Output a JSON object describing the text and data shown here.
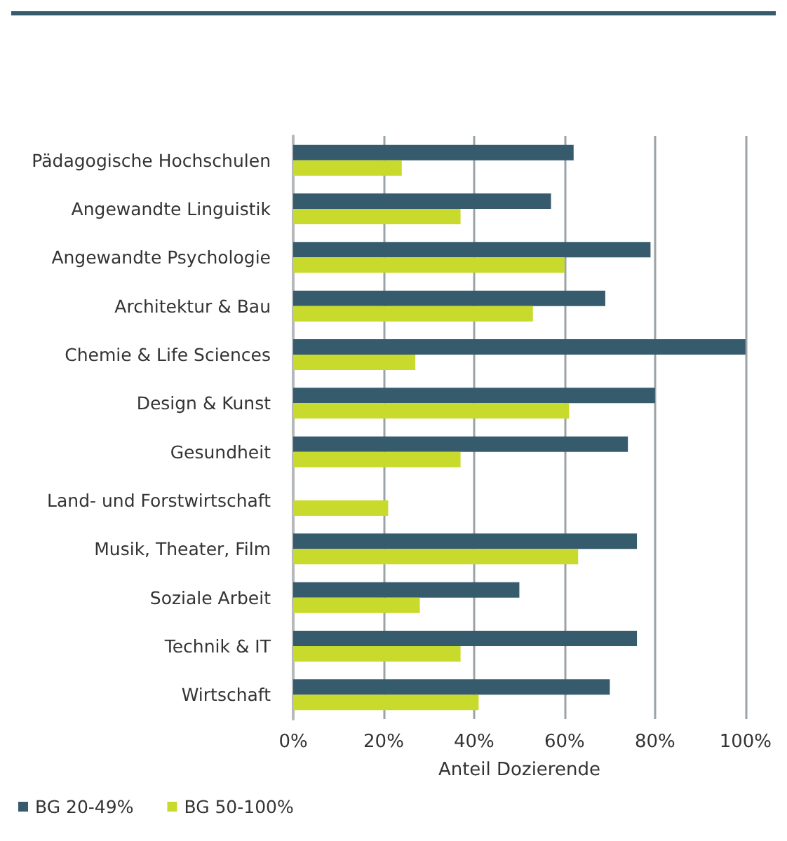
{
  "chart_data": {
    "type": "bar",
    "orientation": "horizontal",
    "xlabel": "Anteil Dozierende",
    "categories": [
      "Pädagogische Hochschulen",
      "Angewandte Linguistik",
      "Angewandte Psychologie",
      "Architektur & Bau",
      "Chemie & Life Sciences",
      "Design & Kunst",
      "Gesundheit",
      "Land- und Forstwirtschaft",
      "Musik, Theater, Film",
      "Soziale Arbeit",
      "Technik & IT",
      "Wirtschaft"
    ],
    "series": [
      {
        "name": "BG 20-49%",
        "color": "#365b6d",
        "values": [
          62,
          57,
          79,
          69,
          100,
          80,
          74,
          null,
          76,
          50,
          76,
          70
        ]
      },
      {
        "name": "BG 50-100%",
        "color": "#c8da2b",
        "values": [
          24,
          37,
          60,
          53,
          27,
          61,
          37,
          21,
          63,
          28,
          37,
          41
        ]
      }
    ],
    "xlim": [
      0,
      100
    ],
    "xticks": [
      {
        "value": 0,
        "label": "0%"
      },
      {
        "value": 20,
        "label": "20%"
      },
      {
        "value": 40,
        "label": "40%"
      },
      {
        "value": 60,
        "label": "60%"
      },
      {
        "value": 80,
        "label": "80%"
      },
      {
        "value": 100,
        "label": "100%"
      }
    ],
    "grid": "x",
    "legend": "bottom left"
  }
}
